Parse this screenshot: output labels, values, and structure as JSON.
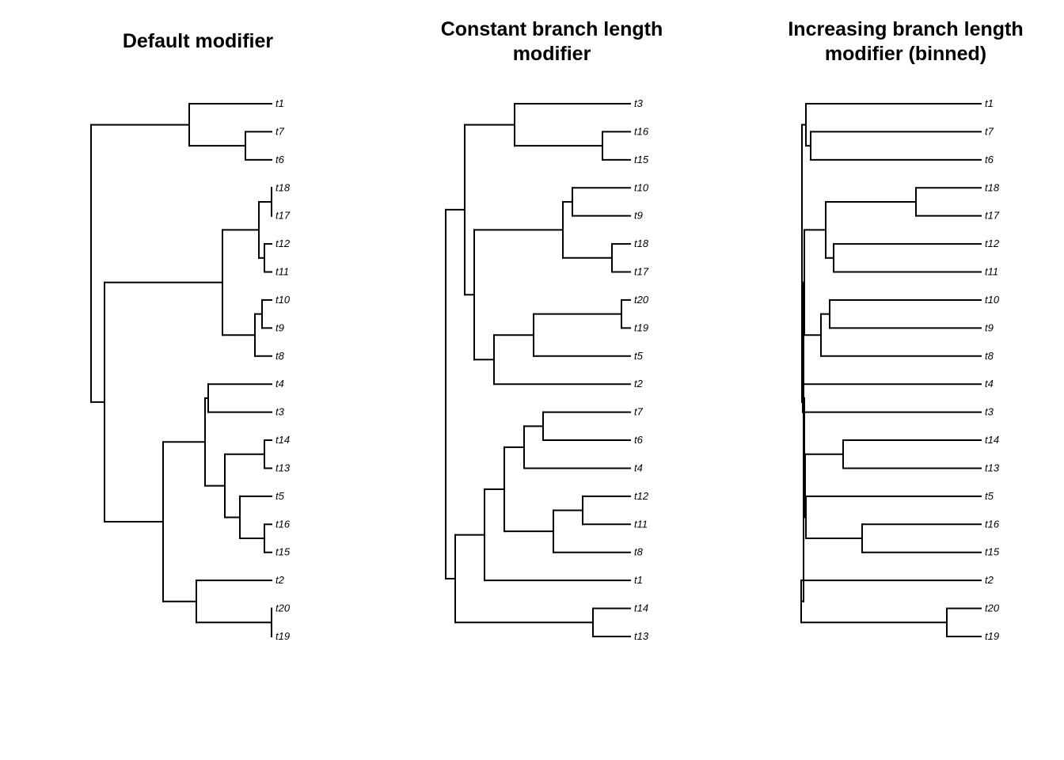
{
  "panels": [
    {
      "title": "Default modifier",
      "tips": [
        "t1",
        "t7",
        "t6",
        "t18",
        "t17",
        "t12",
        "t11",
        "t10",
        "t9",
        "t8",
        "t4",
        "t3",
        "t14",
        "t13",
        "t5",
        "t16",
        "t15",
        "t2",
        "t20",
        "t19"
      ],
      "tree": {
        "c": [
          {
            "c": [
              {
                "t": "t1"
              },
              {
                "c": [
                  {
                    "t": "t7"
                  },
                  {
                    "t": "t6"
                  }
                ]
              }
            ]
          },
          {
            "c": [
              {
                "c": [
                  {
                    "c": [
                      {
                        "c": [
                          {
                            "t": "t18"
                          },
                          {
                            "t": "t17"
                          }
                        ]
                      },
                      {
                        "c": [
                          {
                            "t": "t12"
                          },
                          {
                            "t": "t11"
                          }
                        ]
                      }
                    ]
                  },
                  {
                    "c": [
                      {
                        "c": [
                          {
                            "t": "t10"
                          },
                          {
                            "t": "t9"
                          }
                        ]
                      },
                      {
                        "t": "t8"
                      }
                    ]
                  }
                ]
              },
              {
                "c": [
                  {
                    "c": [
                      {
                        "c": [
                          {
                            "t": "t4"
                          },
                          {
                            "t": "t3"
                          }
                        ]
                      },
                      {
                        "c": [
                          {
                            "c": [
                              {
                                "t": "t14"
                              },
                              {
                                "t": "t13"
                              }
                            ]
                          },
                          {
                            "c": [
                              {
                                "t": "t5"
                              },
                              {
                                "c": [
                                  {
                                    "t": "t16"
                                  },
                                  {
                                    "t": "t15"
                                  }
                                ]
                              }
                            ]
                          }
                        ]
                      }
                    ]
                  },
                  {
                    "c": [
                      {
                        "t": "t2"
                      },
                      {
                        "c": [
                          {
                            "t": "t20"
                          },
                          {
                            "t": "t19"
                          }
                        ]
                      }
                    ]
                  }
                ]
              }
            ]
          }
        ]
      }
    },
    {
      "title": "Constant branch length modifier",
      "tips": [
        "t3",
        "t16",
        "t15",
        "t10",
        "t9",
        "t18",
        "t17",
        "t20",
        "t19",
        "t5",
        "t2",
        "t7",
        "t6",
        "t4",
        "t12",
        "t11",
        "t8",
        "t1",
        "t14",
        "t13"
      ],
      "tree": {
        "c": [
          {
            "c": [
              {
                "c": [
                  {
                    "t": "t3"
                  },
                  {
                    "c": [
                      {
                        "t": "t16"
                      },
                      {
                        "t": "t15"
                      }
                    ]
                  }
                ]
              },
              {
                "c": [
                  {
                    "c": [
                      {
                        "c": [
                          {
                            "t": "t10"
                          },
                          {
                            "t": "t9"
                          }
                        ]
                      },
                      {
                        "c": [
                          {
                            "t": "t18"
                          },
                          {
                            "t": "t17"
                          }
                        ]
                      }
                    ]
                  },
                  {
                    "c": [
                      {
                        "c": [
                          {
                            "c": [
                              {
                                "t": "t20"
                              },
                              {
                                "t": "t19"
                              }
                            ]
                          },
                          {
                            "t": "t5"
                          }
                        ]
                      },
                      {
                        "t": "t2"
                      }
                    ]
                  }
                ]
              }
            ]
          },
          {
            "c": [
              {
                "c": [
                  {
                    "c": [
                      {
                        "c": [
                          {
                            "c": [
                              {
                                "t": "t7"
                              },
                              {
                                "t": "t6"
                              }
                            ]
                          },
                          {
                            "t": "t4"
                          }
                        ]
                      },
                      {
                        "c": [
                          {
                            "c": [
                              {
                                "t": "t12"
                              },
                              {
                                "t": "t11"
                              }
                            ]
                          },
                          {
                            "t": "t8"
                          }
                        ]
                      }
                    ]
                  },
                  {
                    "t": "t1"
                  }
                ]
              },
              {
                "c": [
                  {
                    "t": "t14"
                  },
                  {
                    "t": "t13"
                  }
                ]
              }
            ]
          }
        ]
      }
    },
    {
      "title": "Increasing branch length modifier (binned)",
      "tips": [
        "t1",
        "t7",
        "t6",
        "t18",
        "t17",
        "t12",
        "t11",
        "t10",
        "t9",
        "t8",
        "t4",
        "t3",
        "t14",
        "t13",
        "t5",
        "t16",
        "t15",
        "t2",
        "t20",
        "t19"
      ],
      "tree": {
        "c": [
          {
            "c": [
              {
                "t": "t1"
              },
              {
                "c": [
                  {
                    "t": "t7"
                  },
                  {
                    "t": "t6"
                  }
                ]
              }
            ]
          },
          {
            "c": [
              {
                "c": [
                  {
                    "c": [
                      {
                        "c": [
                          {
                            "t": "t18"
                          },
                          {
                            "t": "t17"
                          }
                        ]
                      },
                      {
                        "c": [
                          {
                            "t": "t12"
                          },
                          {
                            "t": "t11"
                          }
                        ]
                      }
                    ]
                  },
                  {
                    "c": [
                      {
                        "c": [
                          {
                            "t": "t10"
                          },
                          {
                            "t": "t9"
                          }
                        ]
                      },
                      {
                        "t": "t8"
                      }
                    ]
                  }
                ]
              },
              {
                "c": [
                  {
                    "c": [
                      {
                        "c": [
                          {
                            "t": "t4"
                          },
                          {
                            "t": "t3"
                          }
                        ]
                      },
                      {
                        "c": [
                          {
                            "c": [
                              {
                                "t": "t14"
                              },
                              {
                                "t": "t13"
                              }
                            ]
                          },
                          {
                            "c": [
                              {
                                "t": "t5"
                              },
                              {
                                "c": [
                                  {
                                    "t": "t16"
                                  },
                                  {
                                    "t": "t15"
                                  }
                                ]
                              }
                            ]
                          }
                        ]
                      }
                    ]
                  },
                  {
                    "c": [
                      {
                        "t": "t2"
                      },
                      {
                        "c": [
                          {
                            "t": "t20"
                          },
                          {
                            "t": "t19"
                          }
                        ]
                      }
                    ]
                  }
                ]
              }
            ]
          }
        ]
      }
    }
  ]
}
